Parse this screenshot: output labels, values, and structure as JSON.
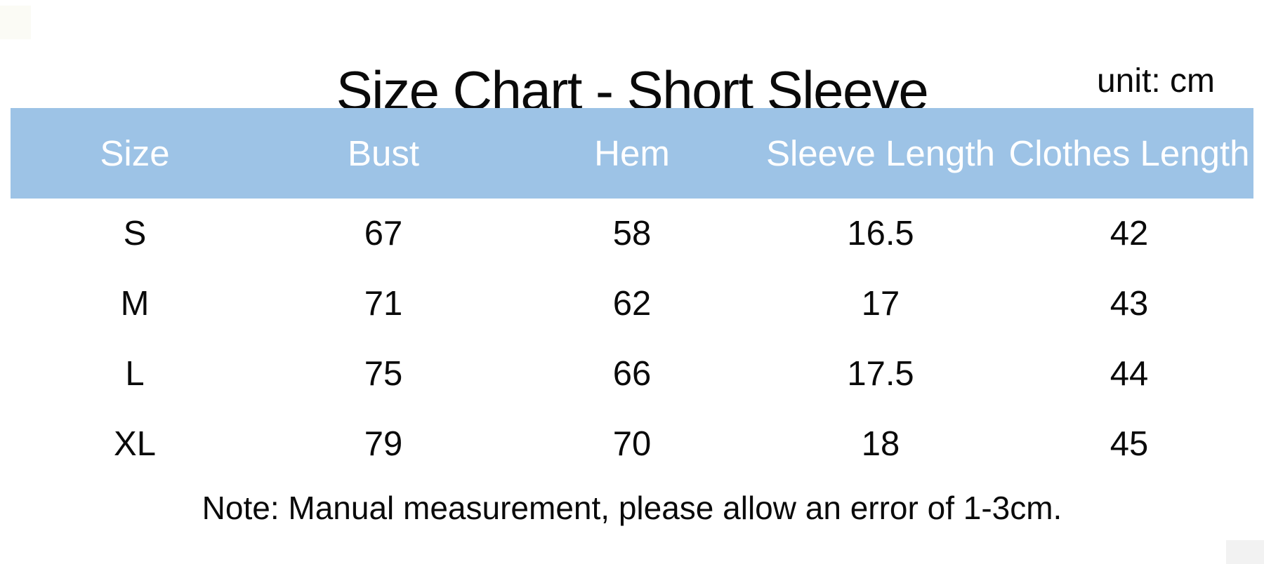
{
  "page": {
    "title": "Size Chart - Short Sleeve",
    "unit_label": "unit: cm",
    "note": "Note: Manual measurement, please allow an error of 1-3cm."
  },
  "table": {
    "headers": [
      "Size",
      "Bust",
      "Hem",
      "Sleeve Length",
      "Clothes Length"
    ],
    "rows": [
      [
        "S",
        "67",
        "58",
        "16.5",
        "42"
      ],
      [
        "M",
        "71",
        "62",
        "17",
        "43"
      ],
      [
        "L",
        "75",
        "66",
        "17.5",
        "44"
      ],
      [
        "XL",
        "79",
        "70",
        "18",
        "45"
      ]
    ]
  },
  "colors": {
    "header_bg": "#9dc3e6",
    "header_text": "#ffffff",
    "body_text": "#0a0a0a",
    "background": "#ffffff"
  },
  "chart_data": {
    "type": "table",
    "title": "Size Chart - Short Sleeve",
    "unit": "cm",
    "columns": [
      "Size",
      "Bust",
      "Hem",
      "Sleeve Length",
      "Clothes Length"
    ],
    "rows": [
      {
        "Size": "S",
        "Bust": 67,
        "Hem": 58,
        "Sleeve Length": 16.5,
        "Clothes Length": 42
      },
      {
        "Size": "M",
        "Bust": 71,
        "Hem": 62,
        "Sleeve Length": 17,
        "Clothes Length": 43
      },
      {
        "Size": "L",
        "Bust": 75,
        "Hem": 66,
        "Sleeve Length": 17.5,
        "Clothes Length": 44
      },
      {
        "Size": "XL",
        "Bust": 79,
        "Hem": 70,
        "Sleeve Length": 18,
        "Clothes Length": 45
      }
    ],
    "note": "Note: Manual measurement, please allow an error of 1-3cm."
  }
}
